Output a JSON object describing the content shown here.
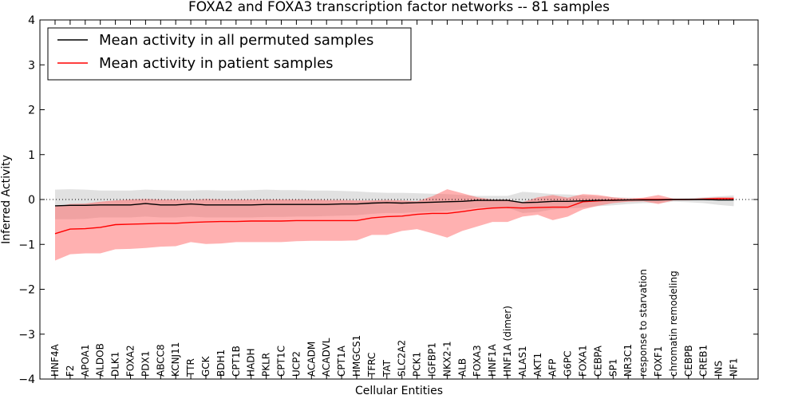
{
  "chart_data": {
    "type": "line",
    "title": "FOXA2 and FOXA3 transcription factor networks -- 81 samples",
    "xlabel": "Cellular Entities",
    "ylabel": "Inferred Activity",
    "ylim": [
      -4,
      4
    ],
    "yticks": [
      "−4",
      "−3",
      "−2",
      "−1",
      "0",
      "1",
      "2",
      "3",
      "4"
    ],
    "yticks_values": [
      -4,
      -3,
      -2,
      -1,
      0,
      1,
      2,
      3,
      4
    ],
    "reference_line": 0,
    "legend": {
      "position": "top-left"
    },
    "categories": [
      "HNF4A",
      "F2",
      "APOA1",
      "ALDOB",
      "DLK1",
      "FOXA2",
      "PDX1",
      "ABCC8",
      "KCNJ11",
      "TTR",
      "GCK",
      "BDH1",
      "CPT1B",
      "HADH",
      "PKLR",
      "CPT1C",
      "UCP2",
      "ACADM",
      "ACADVL",
      "CPT1A",
      "HMGCS1",
      "TFRC",
      "TAT",
      "SLC2A2",
      "PCK1",
      "IGFBP1",
      "NKX2-1",
      "ALB",
      "FOXA3",
      "HNF1A",
      "HNF1A (dimer)",
      "ALAS1",
      "AKT1",
      "AFP",
      "G6PC",
      "FOXA1",
      "CEBPA",
      "SP1",
      "NR3C1",
      "response to starvation",
      "FOXF1",
      "chromatin remodeling",
      "CEBPB",
      "CREB1",
      "INS",
      "NF1"
    ],
    "series": [
      {
        "name": "Mean activity in all permuted samples",
        "color": "#000000",
        "band_color": "#c8c8c8",
        "values": [
          -0.14,
          -0.13,
          -0.13,
          -0.12,
          -0.12,
          -0.12,
          -0.09,
          -0.12,
          -0.12,
          -0.1,
          -0.12,
          -0.12,
          -0.12,
          -0.12,
          -0.11,
          -0.11,
          -0.11,
          -0.11,
          -0.11,
          -0.1,
          -0.1,
          -0.08,
          -0.07,
          -0.08,
          -0.07,
          -0.06,
          -0.05,
          -0.04,
          -0.02,
          -0.02,
          -0.02,
          -0.07,
          -0.06,
          -0.04,
          -0.04,
          -0.03,
          -0.02,
          -0.02,
          -0.01,
          -0.01,
          -0.01,
          0.0,
          0.0,
          0.0,
          -0.01,
          -0.01
        ],
        "lower": [
          -0.44,
          -0.44,
          -0.43,
          -0.4,
          -0.4,
          -0.4,
          -0.38,
          -0.4,
          -0.4,
          -0.38,
          -0.4,
          -0.4,
          -0.4,
          -0.4,
          -0.39,
          -0.39,
          -0.38,
          -0.38,
          -0.37,
          -0.36,
          -0.35,
          -0.32,
          -0.3,
          -0.3,
          -0.28,
          -0.27,
          -0.25,
          -0.22,
          -0.18,
          -0.18,
          -0.18,
          -0.3,
          -0.28,
          -0.22,
          -0.2,
          -0.18,
          -0.15,
          -0.13,
          -0.1,
          -0.08,
          -0.08,
          -0.05,
          -0.06,
          -0.08,
          -0.12,
          -0.15
        ],
        "upper": [
          0.22,
          0.23,
          0.22,
          0.2,
          0.2,
          0.2,
          0.22,
          0.21,
          0.2,
          0.2,
          0.21,
          0.2,
          0.2,
          0.21,
          0.22,
          0.21,
          0.21,
          0.2,
          0.2,
          0.19,
          0.18,
          0.16,
          0.15,
          0.15,
          0.14,
          0.13,
          0.12,
          0.1,
          0.08,
          0.08,
          0.08,
          0.17,
          0.15,
          0.12,
          0.11,
          0.09,
          0.07,
          0.05,
          0.04,
          0.03,
          0.03,
          0.02,
          0.03,
          0.05,
          0.07,
          0.09
        ]
      },
      {
        "name": "Mean activity in patient samples",
        "color": "#ff0000",
        "band_color": "#ff6464",
        "values": [
          -0.76,
          -0.66,
          -0.65,
          -0.62,
          -0.56,
          -0.55,
          -0.54,
          -0.53,
          -0.53,
          -0.51,
          -0.5,
          -0.49,
          -0.49,
          -0.48,
          -0.48,
          -0.48,
          -0.47,
          -0.47,
          -0.47,
          -0.47,
          -0.47,
          -0.41,
          -0.38,
          -0.37,
          -0.33,
          -0.31,
          -0.31,
          -0.27,
          -0.22,
          -0.19,
          -0.18,
          -0.19,
          -0.18,
          -0.17,
          -0.17,
          -0.05,
          -0.03,
          -0.01,
          -0.01,
          0.0,
          0.0,
          0.0,
          0.0,
          0.01,
          0.02,
          0.02
        ],
        "lower": [
          -1.36,
          -1.22,
          -1.2,
          -1.2,
          -1.11,
          -1.1,
          -1.08,
          -1.05,
          -1.04,
          -0.95,
          -0.99,
          -0.98,
          -0.95,
          -0.95,
          -0.95,
          -0.95,
          -0.93,
          -0.92,
          -0.92,
          -0.92,
          -0.91,
          -0.79,
          -0.79,
          -0.7,
          -0.66,
          -0.75,
          -0.85,
          -0.7,
          -0.6,
          -0.5,
          -0.5,
          -0.38,
          -0.34,
          -0.46,
          -0.38,
          -0.22,
          -0.14,
          -0.08,
          -0.05,
          -0.04,
          -0.1,
          -0.02,
          -0.01,
          -0.01,
          0.0,
          0.0
        ],
        "upper": [
          -0.16,
          -0.1,
          -0.09,
          -0.05,
          -0.02,
          0.0,
          0.01,
          0.0,
          0.0,
          -0.01,
          0.01,
          0.0,
          0.0,
          0.0,
          0.0,
          0.0,
          0.0,
          0.0,
          -0.01,
          -0.01,
          -0.02,
          -0.02,
          -0.01,
          -0.02,
          -0.04,
          0.07,
          0.23,
          0.14,
          0.05,
          0.0,
          0.0,
          -0.06,
          0.05,
          0.1,
          0.04,
          0.12,
          0.1,
          0.05,
          0.02,
          0.04,
          0.1,
          0.02,
          0.01,
          0.03,
          0.05,
          0.05
        ]
      }
    ]
  }
}
